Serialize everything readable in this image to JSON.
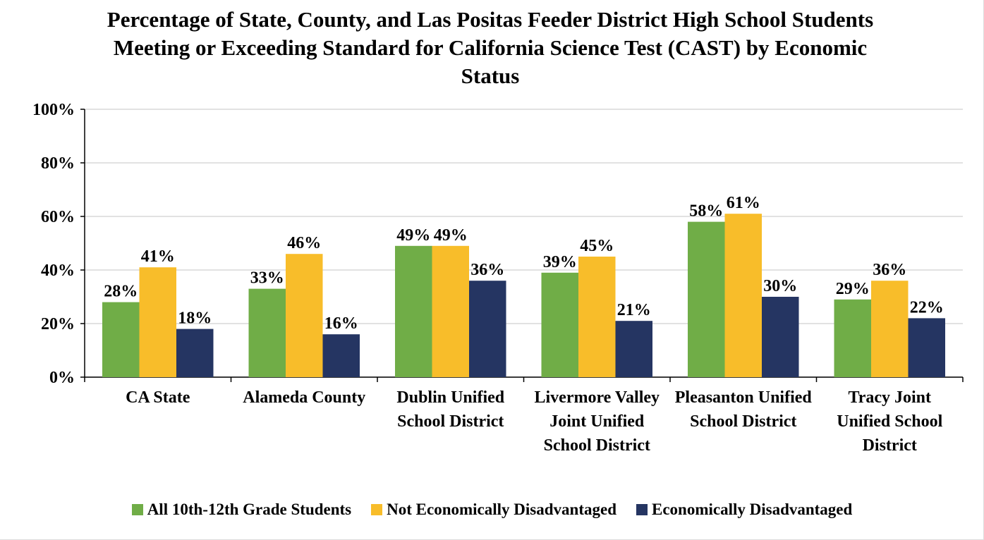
{
  "chart_data": {
    "type": "bar",
    "title": "Percentage of State, County, and Las Positas Feeder District High School Students Meeting or Exceeding Standard for California Science Test (CAST) by Economic Status",
    "categories": [
      "CA State",
      "Alameda County",
      "Dublin Unified School District",
      "Livermore Valley Joint Unified School District",
      "Pleasanton Unified School District",
      "Tracy Joint Unified School District"
    ],
    "series": [
      {
        "name": "All 10th-12th Grade Students",
        "color": "#70ad47",
        "values": [
          28,
          33,
          49,
          39,
          58,
          29
        ],
        "value_labels": [
          "28%",
          "33%",
          "49%",
          "39%",
          "58%",
          "29%"
        ]
      },
      {
        "name": "Not Economically Disadvantaged",
        "color": "#f8bd2a",
        "values": [
          41,
          46,
          49,
          45,
          61,
          36
        ],
        "value_labels": [
          "41%",
          "46%",
          "49%",
          "45%",
          "61%",
          "36%"
        ]
      },
      {
        "name": "Economically Disadvantaged",
        "color": "#253562",
        "values": [
          18,
          16,
          36,
          21,
          30,
          22
        ],
        "value_labels": [
          "18%",
          "16%",
          "36%",
          "21%",
          "30%",
          "22%"
        ]
      }
    ],
    "ylim": [
      0,
      100
    ],
    "yticks": [
      {
        "value": 0,
        "label": "0%"
      },
      {
        "value": 20,
        "label": "20%"
      },
      {
        "value": 40,
        "label": "40%"
      },
      {
        "value": 60,
        "label": "60%"
      },
      {
        "value": 80,
        "label": "80%"
      },
      {
        "value": 100,
        "label": "100%"
      }
    ],
    "grid": true,
    "legend": "bottom"
  }
}
